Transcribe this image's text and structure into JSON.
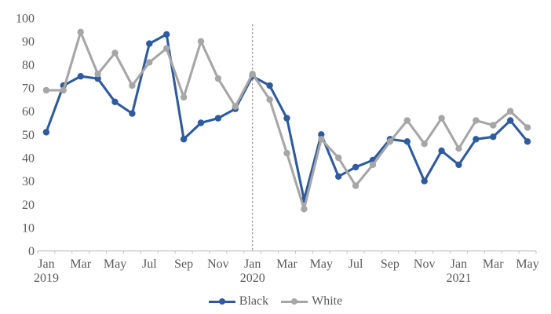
{
  "chart_data": {
    "type": "line",
    "title": "",
    "xlabel": "",
    "ylabel": "",
    "ylim": [
      0,
      100
    ],
    "y_ticks": [
      0,
      10,
      20,
      30,
      40,
      50,
      60,
      70,
      80,
      90,
      100
    ],
    "grid": false,
    "legend_position": "bottom",
    "x_categories": [
      "Jan 2019",
      "Feb 2019",
      "Mar 2019",
      "Apr 2019",
      "May 2019",
      "Jun 2019",
      "Jul 2019",
      "Aug 2019",
      "Sep 2019",
      "Oct 2019",
      "Nov 2019",
      "Dec 2019",
      "Jan 2020",
      "Feb 2020",
      "Mar 2020",
      "Apr 2020",
      "May 2020",
      "Jun 2020",
      "Jul 2020",
      "Aug 2020",
      "Sep 2020",
      "Oct 2020",
      "Nov 2020",
      "Dec 2020",
      "Jan 2021",
      "Feb 2021",
      "Mar 2021",
      "Apr 2021",
      "May 2021"
    ],
    "x_labels": [
      {
        "index": 0,
        "month": "Jan",
        "year": "2019"
      },
      {
        "index": 2,
        "month": "Mar"
      },
      {
        "index": 4,
        "month": "May"
      },
      {
        "index": 6,
        "month": "Jul"
      },
      {
        "index": 8,
        "month": "Sep"
      },
      {
        "index": 10,
        "month": "Nov"
      },
      {
        "index": 12,
        "month": "Jan",
        "year": "2020"
      },
      {
        "index": 14,
        "month": "Mar"
      },
      {
        "index": 16,
        "month": "May"
      },
      {
        "index": 18,
        "month": "Jul"
      },
      {
        "index": 20,
        "month": "Sep"
      },
      {
        "index": 22,
        "month": "Nov"
      },
      {
        "index": 24,
        "month": "Jan",
        "year": "2021"
      },
      {
        "index": 26,
        "month": "Mar"
      },
      {
        "index": 28,
        "month": "May"
      }
    ],
    "series": [
      {
        "name": "Black",
        "color": "#2E5B9E",
        "values": [
          51,
          71,
          75,
          74,
          64,
          59,
          89,
          93,
          48,
          55,
          57,
          61,
          75,
          71,
          57,
          22,
          50,
          32,
          36,
          39,
          48,
          47,
          30,
          43,
          37,
          48,
          49,
          56,
          47
        ]
      },
      {
        "name": "White",
        "color": "#A6A6A6",
        "values": [
          69,
          69,
          94,
          76,
          85,
          71,
          81,
          87,
          66,
          90,
          74,
          62,
          76,
          65,
          42,
          18,
          48,
          40,
          28,
          37,
          47,
          56,
          46,
          57,
          44,
          56,
          54,
          60,
          53
        ]
      }
    ],
    "annotation_line": {
      "x_index": 12,
      "at_category": "Jan 2020",
      "style": "dashed",
      "color": "#7F7F7F"
    },
    "colors": {
      "axis_line": "#BFBFBF",
      "tick": "#BFBFBF",
      "label_text": "#595959",
      "background": "#FFFFFF"
    }
  }
}
